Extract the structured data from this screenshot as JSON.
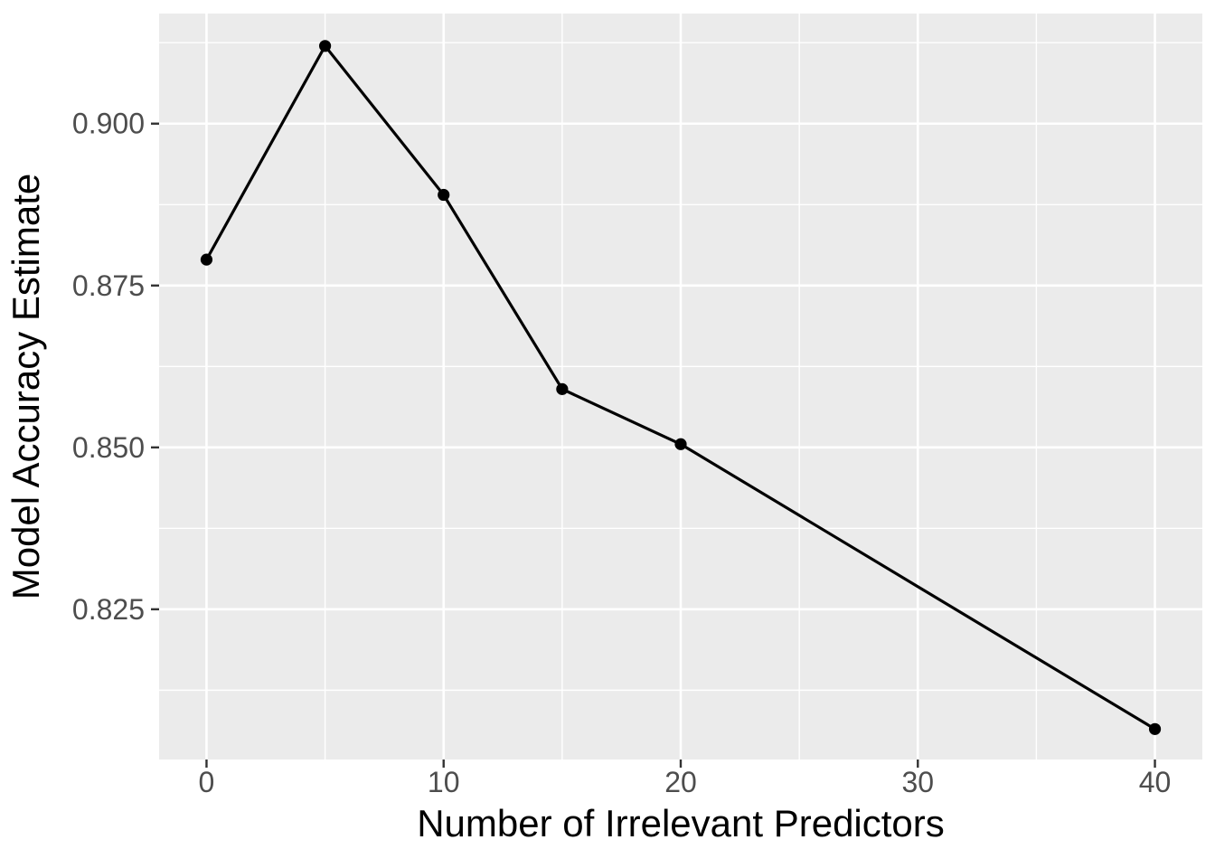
{
  "figure": {
    "background": "#FFFFFF"
  },
  "chart_data": {
    "type": "line",
    "title": "",
    "xlabel": "Number of Irrelevant Predictors",
    "ylabel": "Model Accuracy Estimate",
    "x": [
      0,
      5,
      10,
      15,
      20,
      40
    ],
    "y": [
      0.879,
      0.912,
      0.889,
      0.859,
      0.8505,
      0.8065
    ],
    "xlim": [
      -2,
      42
    ],
    "ylim": [
      0.8018,
      0.917
    ],
    "x_ticks": [
      0,
      10,
      20,
      30,
      40
    ],
    "x_tick_labels": [
      "0",
      "10",
      "20",
      "30",
      "40"
    ],
    "y_ticks": [
      0.825,
      0.85,
      0.875,
      0.9
    ],
    "y_tick_labels": [
      "0.825",
      "0.850",
      "0.875",
      "0.900"
    ],
    "x_minor_ticks": [
      5,
      15,
      25,
      35
    ],
    "y_minor_ticks": [
      0.8125,
      0.8375,
      0.8625,
      0.8875,
      0.9125
    ],
    "grid": true,
    "legend": false,
    "style": {
      "panel_background": "#EBEBEB",
      "grid_major_color": "#FFFFFF",
      "grid_minor_color": "#FFFFFF",
      "line_color": "#000000",
      "point_color": "#000000",
      "tick_mark_color": "#333333",
      "tick_label_color": "#4D4D4D",
      "axis_title_color": "#000000"
    }
  }
}
